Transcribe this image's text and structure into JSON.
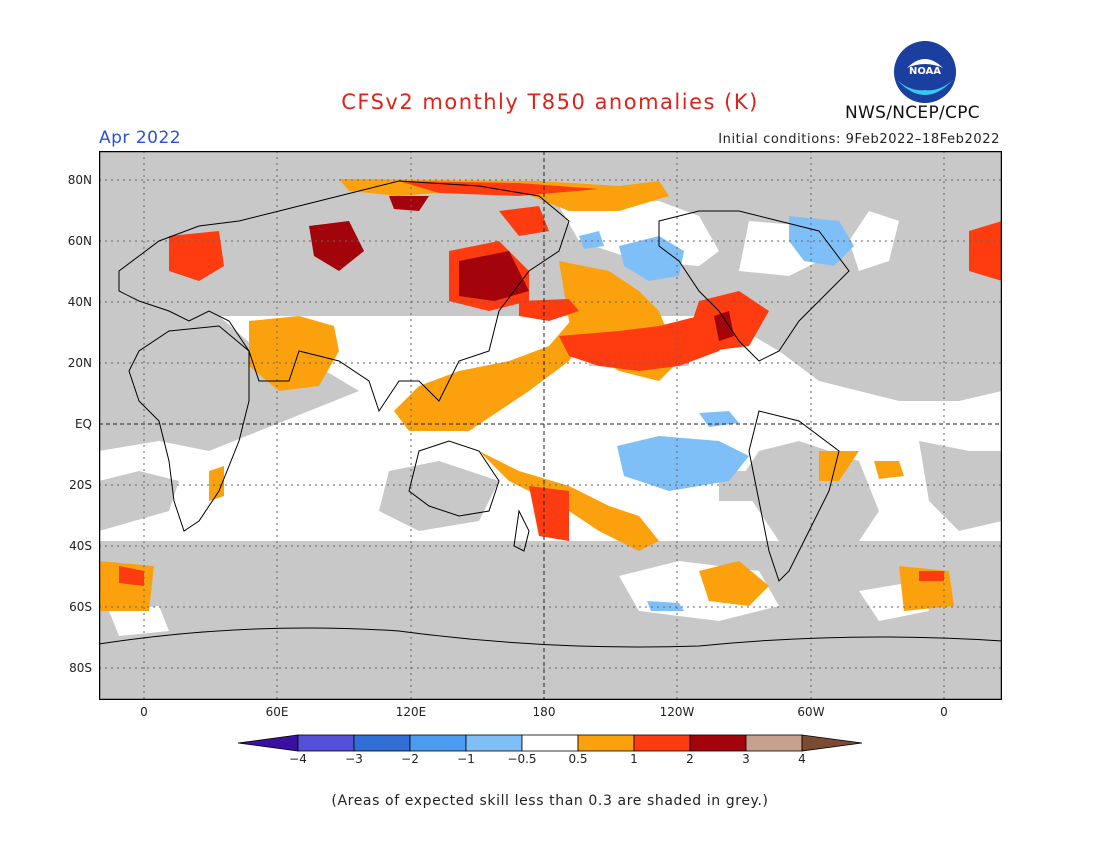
{
  "header": {
    "title": "CFSv2 monthly T850 anomalies (K)",
    "month": "Apr 2022",
    "initial_conditions": "Initial conditions: 9Feb2022–18Feb2022",
    "agency": "NWS/NCEP/CPC",
    "logo_text": "NOAA"
  },
  "map": {
    "lat_labels": [
      "80N",
      "60N",
      "40N",
      "20N",
      "EQ",
      "20S",
      "40S",
      "60S",
      "80S"
    ],
    "lon_labels": [
      "0",
      "60E",
      "120E",
      "180",
      "120W",
      "60W",
      "0"
    ],
    "colors": {
      "ocean_land_background": "#ffffff",
      "grey_low_skill": "#c8c8c8",
      "coast": "#000000"
    }
  },
  "colorbar": {
    "tick_labels": [
      "−4",
      "−3",
      "−2",
      "−1",
      "−0.5",
      "0.5",
      "1",
      "2",
      "3",
      "4"
    ],
    "colors": [
      "#3a10a0",
      "#5550d8",
      "#2f6fd6",
      "#4b9cf0",
      "#7fbff8",
      "#ffffff",
      "#fba10d",
      "#fe3c10",
      "#a3030b",
      "#c8a08e",
      "#7b4a33"
    ]
  },
  "footnote": "(Areas of expected skill less than 0.3 are shaded in grey.)"
}
